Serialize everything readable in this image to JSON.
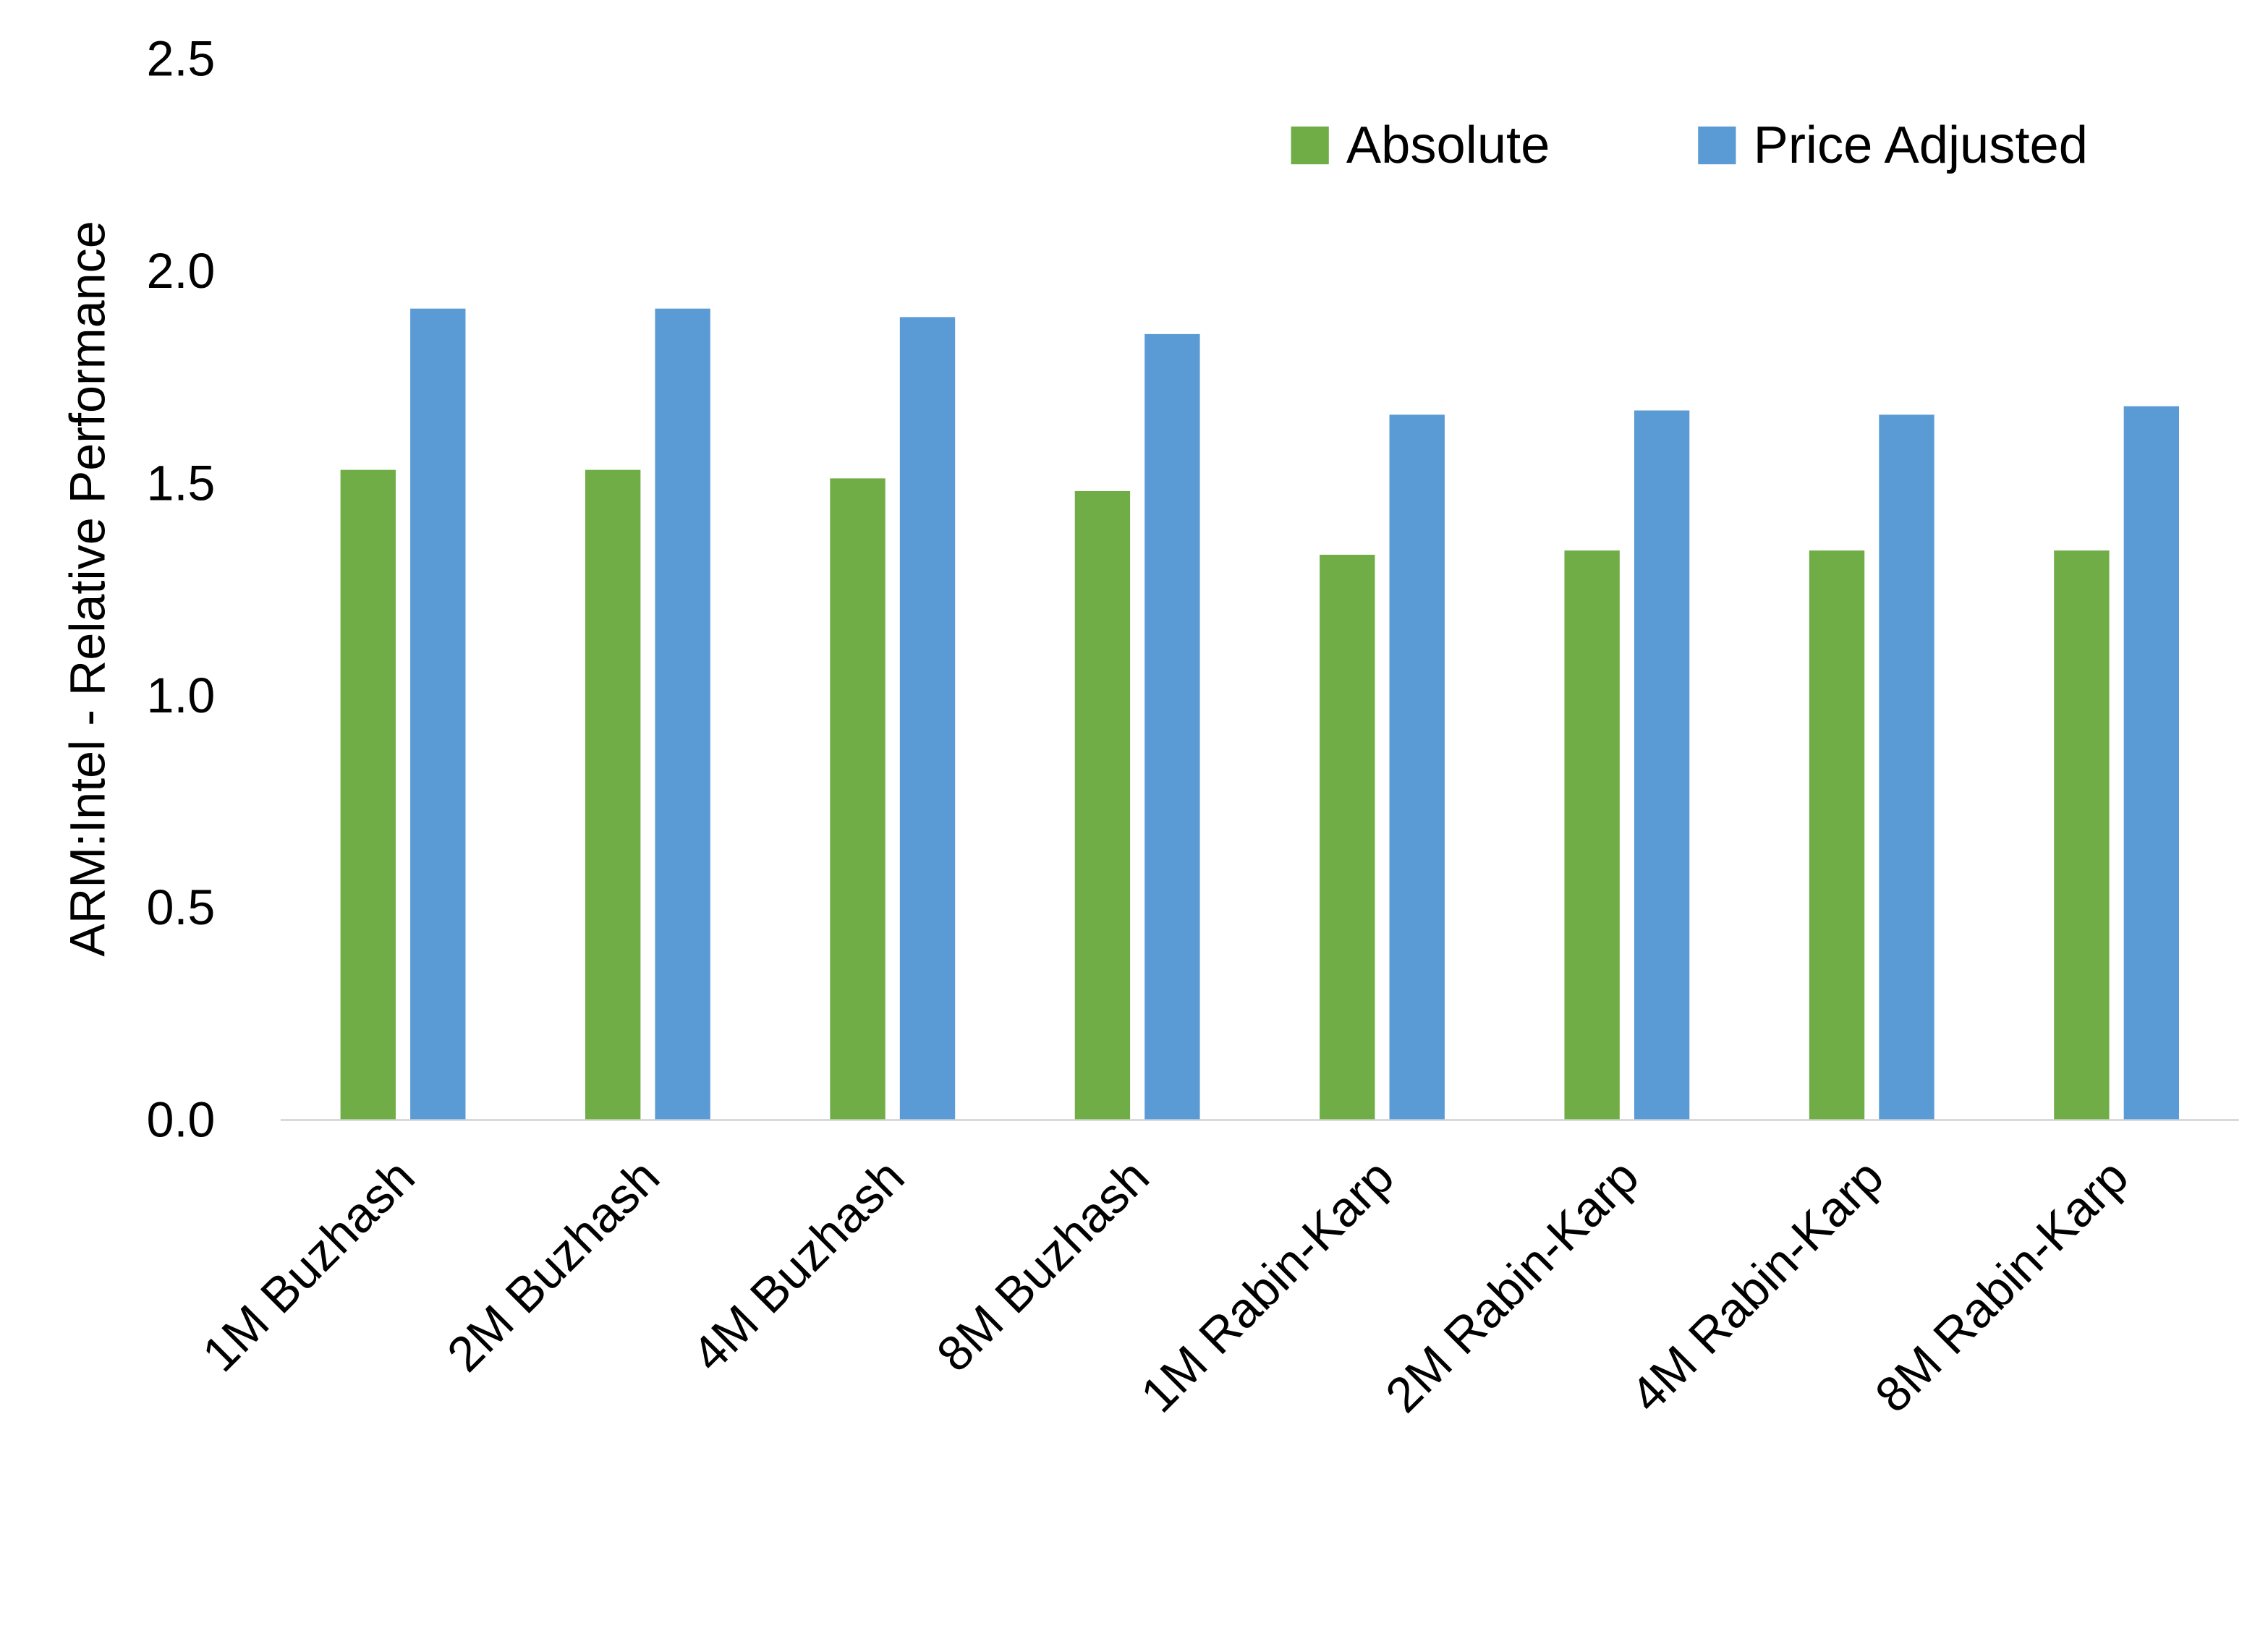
{
  "chart_data": {
    "type": "bar",
    "title": "",
    "xlabel": "",
    "ylabel": "ARM:Intel - Relative Performance",
    "ylim": [
      0,
      2.5
    ],
    "yticks": [
      "0.0",
      "0.5",
      "1.0",
      "1.5",
      "2.0",
      "2.5"
    ],
    "grid": false,
    "legend_position": "top-right",
    "categories": [
      "1M Buzhash",
      "2M Buzhash",
      "4M Buzhash",
      "8M Buzhash",
      "1M Rabin-Karp",
      "2M Rabin-Karp",
      "4M Rabin-Karp",
      "8M Rabin-Karp"
    ],
    "series": [
      {
        "name": "Absolute",
        "color": "#70AD47",
        "values": [
          1.53,
          1.53,
          1.51,
          1.48,
          1.33,
          1.34,
          1.34,
          1.34
        ]
      },
      {
        "name": "Price Adjusted",
        "color": "#5B9BD5",
        "values": [
          1.91,
          1.91,
          1.89,
          1.85,
          1.66,
          1.67,
          1.66,
          1.68
        ]
      }
    ]
  }
}
